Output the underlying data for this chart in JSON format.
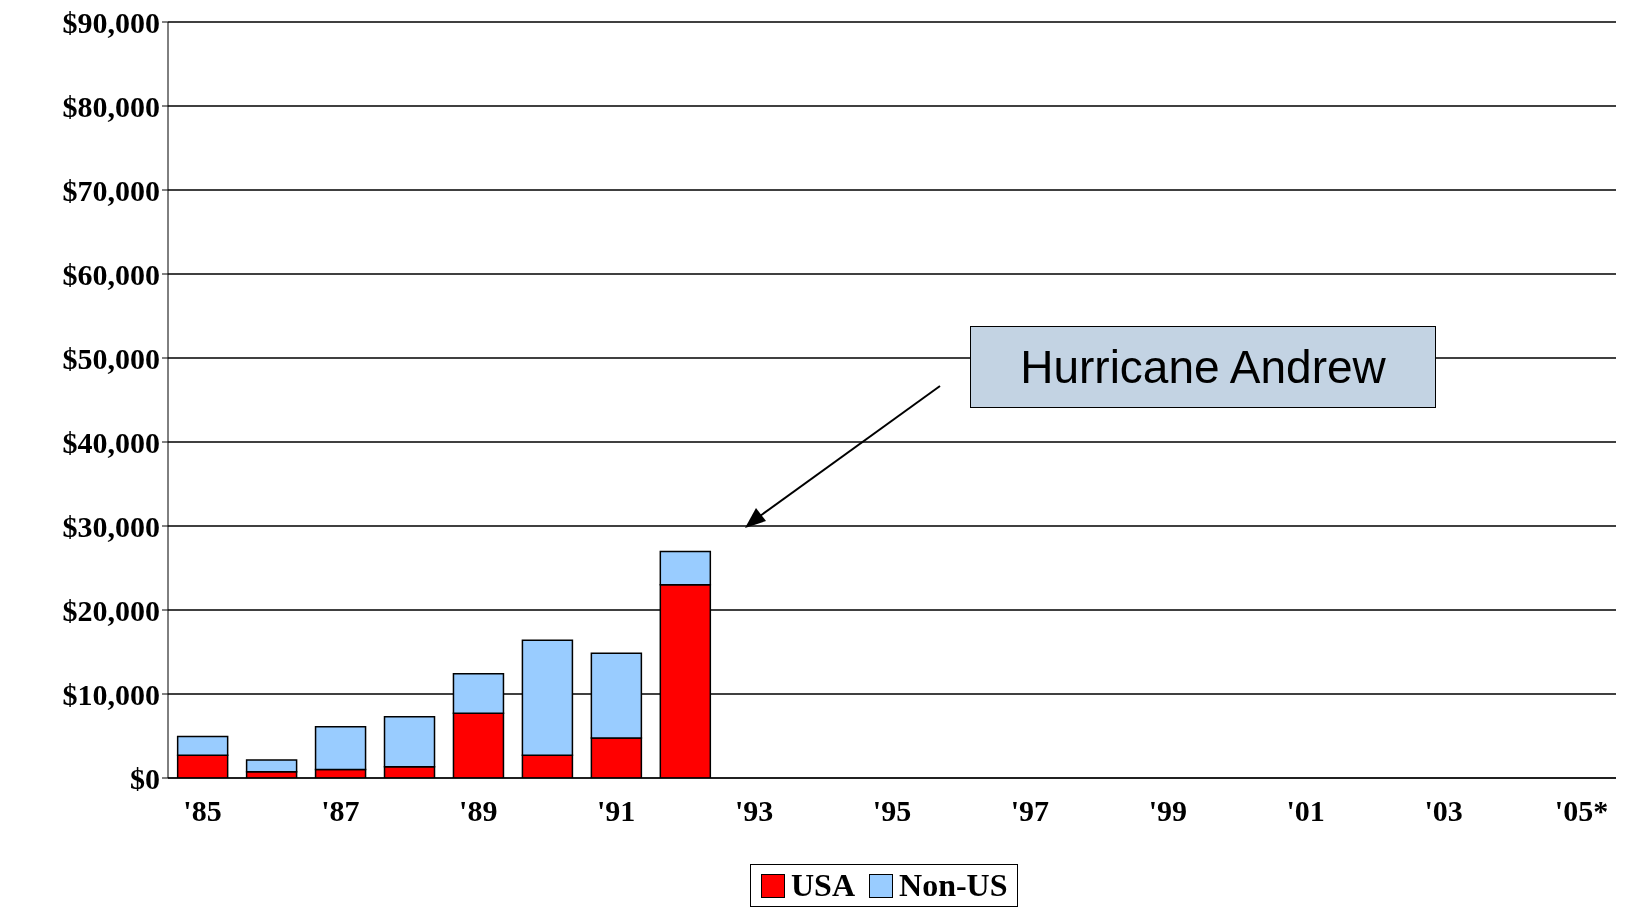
{
  "chart_data": {
    "type": "bar",
    "stacked": true,
    "categories": [
      "'85",
      null,
      "'87",
      null,
      "'89",
      null,
      "'91",
      null,
      "'93",
      null,
      "'95",
      null,
      "'97",
      null,
      "'99",
      null,
      "'01",
      null,
      "'03",
      null,
      "'05*"
    ],
    "series": [
      {
        "name": "USA",
        "color": "#ff0000",
        "values": [
          2700,
          750,
          1000,
          1350,
          7700,
          2700,
          4750,
          23000,
          null,
          null,
          null,
          null,
          null,
          null,
          null,
          null,
          null,
          null,
          null,
          null,
          null
        ]
      },
      {
        "name": "Non-US",
        "color": "#99ccff",
        "values": [
          2250,
          1400,
          5100,
          5950,
          4700,
          13700,
          10100,
          3950,
          null,
          null,
          null,
          null,
          null,
          null,
          null,
          null,
          null,
          null,
          null,
          null,
          null
        ]
      }
    ],
    "ylim": [
      0,
      90000
    ],
    "yticks": [
      {
        "value": 0,
        "label": "$0"
      },
      {
        "value": 10000,
        "label": "$10,000"
      },
      {
        "value": 20000,
        "label": "$20,000"
      },
      {
        "value": 30000,
        "label": "$30,000"
      },
      {
        "value": 40000,
        "label": "$40,000"
      },
      {
        "value": 50000,
        "label": "$50,000"
      },
      {
        "value": 60000,
        "label": "$60,000"
      },
      {
        "value": 70000,
        "label": "$70,000"
      },
      {
        "value": 80000,
        "label": "$80,000"
      },
      {
        "value": 90000,
        "label": "$90,000"
      }
    ],
    "grid": "y",
    "legend": "bottom",
    "annotations": [
      "Hurricane Andrew"
    ]
  }
}
